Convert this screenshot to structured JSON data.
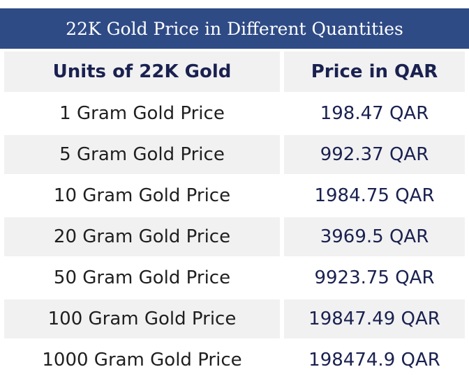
{
  "title": "22K Gold Price in Different Quantities",
  "headers": {
    "units": "Units of 22K Gold",
    "price": "Price in QAR"
  },
  "rows": [
    {
      "unit": "1 Gram Gold Price",
      "price": "198.47 QAR"
    },
    {
      "unit": "5 Gram Gold Price",
      "price": "992.37 QAR"
    },
    {
      "unit": "10 Gram Gold Price",
      "price": "1984.75 QAR"
    },
    {
      "unit": "20 Gram Gold Price",
      "price": "3969.5 QAR"
    },
    {
      "unit": "50 Gram Gold Price",
      "price": "9923.75 QAR"
    },
    {
      "unit": "100 Gram Gold Price",
      "price": "19847.49 QAR"
    },
    {
      "unit": "1000 Gram Gold Price",
      "price": "198474.9 QAR"
    }
  ],
  "colors": {
    "title_background": "#2f4b86",
    "header_text": "#1a2150",
    "row_shade": "#f1f1f1"
  }
}
